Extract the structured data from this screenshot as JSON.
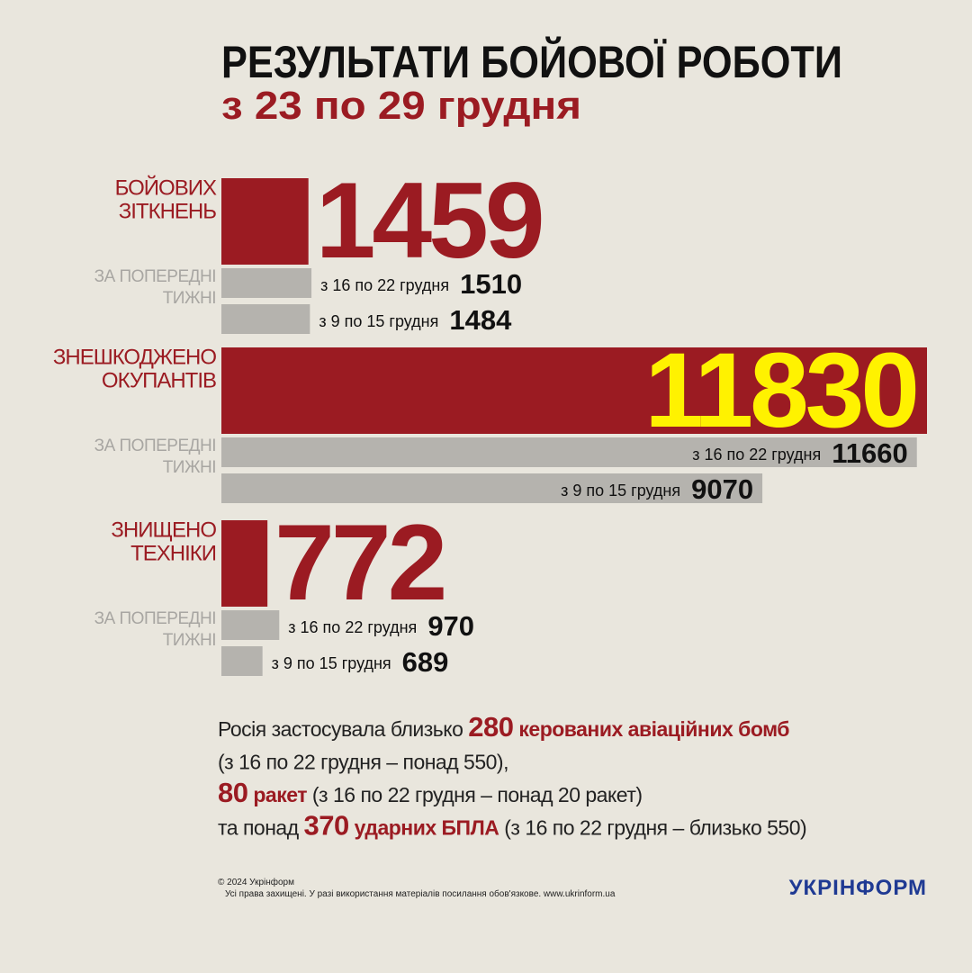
{
  "chart_data": {
    "type": "bar",
    "orientation": "horizontal",
    "title": "РЕЗУЛЬТАТИ БОЙОВОЇ РОБОТИ",
    "subtitle": "з 23 по 29 грудня",
    "xlim": [
      0,
      11830
    ],
    "accent_color": "#9b1b22",
    "previous_color": "#b5b3ae",
    "inside_value_color": "#fff200",
    "groups": [
      {
        "label_lines": [
          "БОЙОВИХ",
          "ЗІТКНЕНЬ"
        ],
        "value": 1459,
        "previous_label_lines": [
          "ЗА ПОПЕРЕДНІ",
          "ТИЖНІ"
        ],
        "previous": [
          {
            "label": "з 16 по 22 грудня",
            "value": 1510
          },
          {
            "label": "з 9 по 15 грудня",
            "value": 1484
          }
        ]
      },
      {
        "label_lines": [
          "ЗНЕШКОДЖЕНО",
          "ОКУПАНТІВ"
        ],
        "value": 11830,
        "previous_label_lines": [
          "ЗА ПОПЕРЕДНІ",
          "ТИЖНІ"
        ],
        "previous": [
          {
            "label": "з 16 по 22 грудня",
            "value": 11660
          },
          {
            "label": "з 9 по 15 грудня",
            "value": 9070
          }
        ]
      },
      {
        "label_lines": [
          "ЗНИЩЕНО",
          "ТЕХНІКИ"
        ],
        "value": 772,
        "previous_label_lines": [
          "ЗА ПОПЕРЕДНІ",
          "ТИЖНІ"
        ],
        "previous": [
          {
            "label": "з 16 по 22 грудня",
            "value": 970
          },
          {
            "label": "з 9 по 15 грудня",
            "value": 689
          }
        ]
      }
    ]
  },
  "notes": [
    [
      {
        "text": "Росія застосувала близько ",
        "style": "plain"
      },
      {
        "text": "280",
        "style": "accent-large"
      },
      {
        "text": " керованих авіаційних бомб",
        "style": "accent"
      }
    ],
    [
      {
        "text": "(з 16 по 22 грудня – понад 550),",
        "style": "plain"
      }
    ],
    [
      {
        "text": "80",
        "style": "accent-large"
      },
      {
        "text": " ракет",
        "style": "accent"
      },
      {
        "text": " (з 16 по 22 грудня – понад 20 ракет)",
        "style": "plain"
      }
    ],
    [
      {
        "text": "та понад ",
        "style": "plain"
      },
      {
        "text": "370",
        "style": "accent-large"
      },
      {
        "text": " ударних БПЛА",
        "style": "accent"
      },
      {
        "text": " (з 16 по 22 грудня – близько 550)",
        "style": "plain"
      }
    ]
  ],
  "footer": {
    "copyright": "© 2024 Укрінформ",
    "rights": "Усі права захищені. У разі використання матеріалів посилання обов'язкове. www.ukrinform.ua",
    "logo": "УКРІНФОРМ"
  }
}
